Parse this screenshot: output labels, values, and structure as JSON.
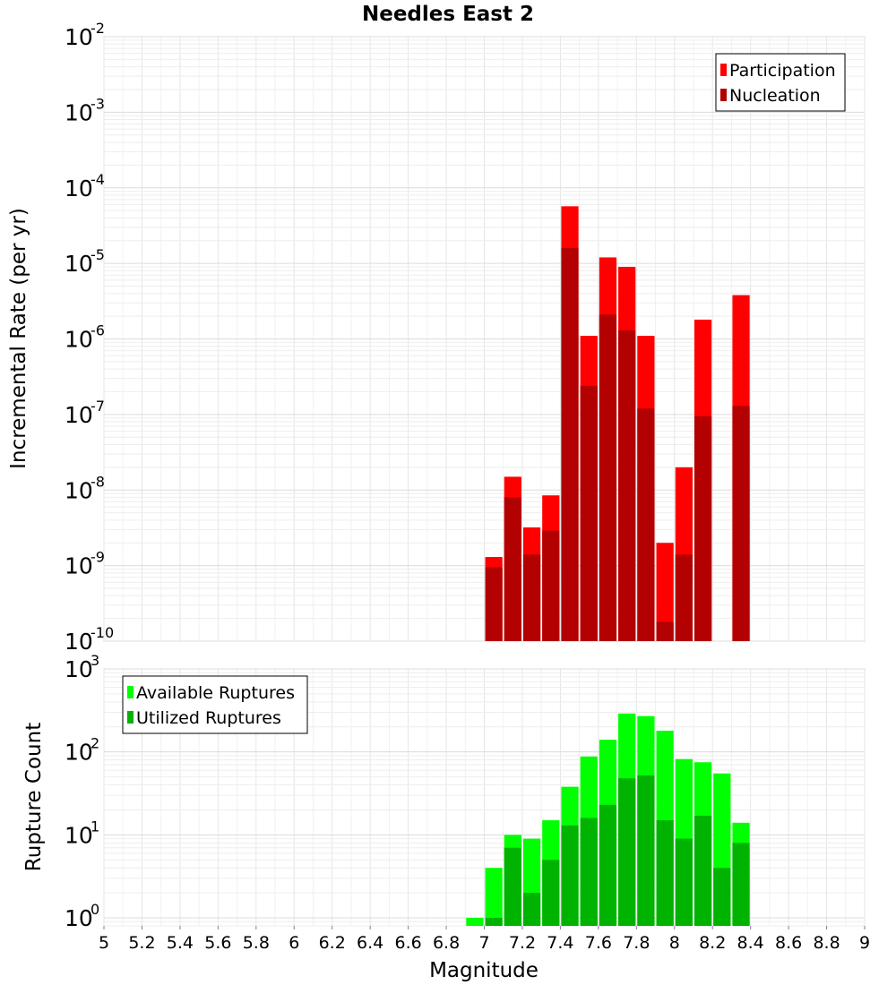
{
  "chart_data": [
    {
      "type": "bar",
      "title": "Needles East 2",
      "xlabel": "",
      "ylabel": "Incremental Rate (per yr)",
      "yscale": "log",
      "ylim": [
        1e-10,
        0.01
      ],
      "xlim": [
        5,
        9
      ],
      "grid": true,
      "legend_position": "top-right",
      "bar_mode": "overlay",
      "x": [
        7.0,
        7.1,
        7.2,
        7.3,
        7.4,
        7.5,
        7.6,
        7.7,
        7.8,
        7.9,
        8.0,
        8.1,
        8.3
      ],
      "series": [
        {
          "name": "Participation",
          "color": "#ff0000",
          "values": [
            1.3e-09,
            1.5e-08,
            3.2e-09,
            8.5e-09,
            5.7e-05,
            1.1e-06,
            1.2e-05,
            9e-06,
            1.1e-06,
            2e-09,
            2e-08,
            1.8e-06,
            3.8e-06
          ]
        },
        {
          "name": "Nucleation",
          "color": "#b30000",
          "values": [
            9.5e-10,
            8e-09,
            1.4e-09,
            2.9e-09,
            1.6e-05,
            2.4e-07,
            2.1e-06,
            1.3e-06,
            1.2e-07,
            1.8e-10,
            1.4e-09,
            9.5e-08,
            1.3e-07
          ]
        }
      ],
      "yticks": [
        {
          "base": "10",
          "exp": "-2"
        },
        {
          "base": "10",
          "exp": "-3"
        },
        {
          "base": "10",
          "exp": "-4"
        },
        {
          "base": "10",
          "exp": "-5"
        },
        {
          "base": "10",
          "exp": "-6"
        },
        {
          "base": "10",
          "exp": "-7"
        },
        {
          "base": "10",
          "exp": "-8"
        },
        {
          "base": "10",
          "exp": "-9"
        },
        {
          "base": "10",
          "exp": "-10"
        }
      ]
    },
    {
      "type": "bar",
      "title": "",
      "xlabel": "Magnitude",
      "ylabel": "Rupture Count",
      "yscale": "log",
      "ylim": [
        0.8,
        1000
      ],
      "xlim": [
        5,
        9
      ],
      "grid": true,
      "legend_position": "top-left",
      "bar_mode": "overlay",
      "x": [
        6.9,
        7.0,
        7.1,
        7.2,
        7.3,
        7.4,
        7.5,
        7.6,
        7.7,
        7.8,
        7.9,
        8.0,
        8.1,
        8.2,
        8.3
      ],
      "series": [
        {
          "name": "Available Ruptures",
          "color": "#00ff00",
          "values": [
            1,
            4,
            10,
            9,
            15,
            38,
            88,
            140,
            290,
            270,
            180,
            82,
            75,
            55,
            14
          ]
        },
        {
          "name": "Utilized Ruptures",
          "color": "#00b300",
          "values": [
            0,
            1,
            7,
            2,
            5,
            13,
            16,
            23,
            48,
            52,
            15,
            9,
            17,
            4,
            8
          ]
        }
      ],
      "yticks": [
        {
          "base": "10",
          "exp": "3"
        },
        {
          "base": "10",
          "exp": "2"
        },
        {
          "base": "10",
          "exp": "1"
        },
        {
          "base": "10",
          "exp": "0"
        }
      ],
      "xticks": [
        "5",
        "5.2",
        "5.4",
        "5.6",
        "5.8",
        "6",
        "6.2",
        "6.4",
        "6.6",
        "6.8",
        "7",
        "7.2",
        "7.4",
        "7.6",
        "7.8",
        "8",
        "8.2",
        "8.4",
        "8.6",
        "8.8",
        "9"
      ]
    }
  ]
}
